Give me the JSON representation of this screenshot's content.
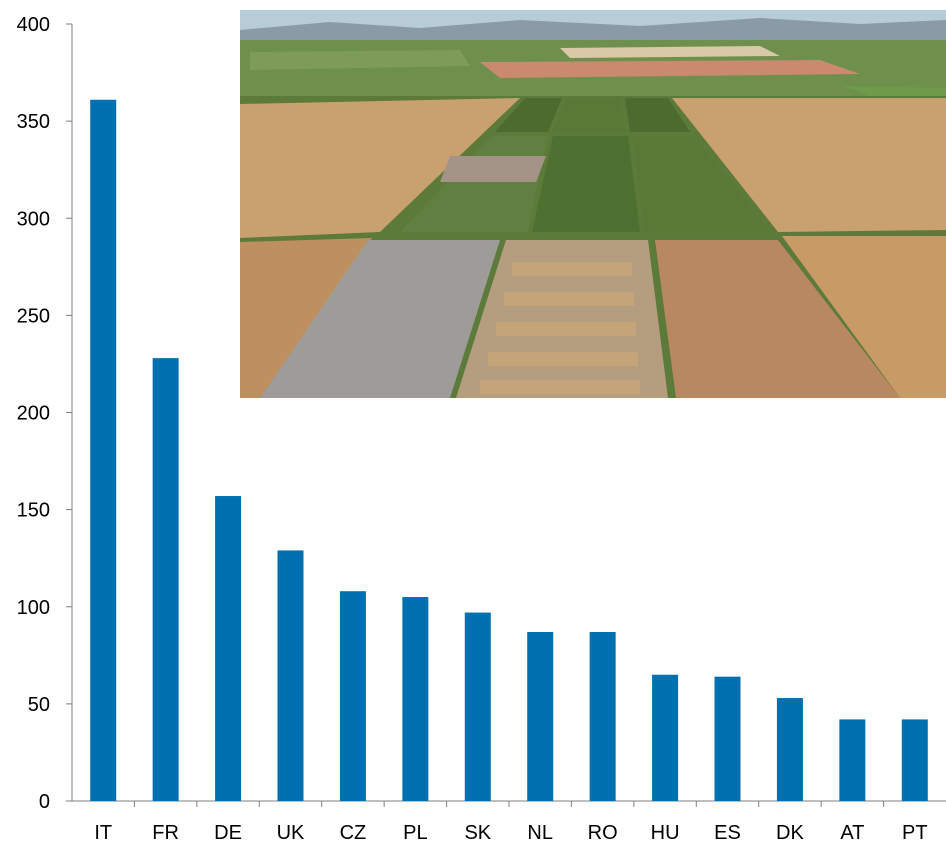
{
  "chart_data": {
    "type": "bar",
    "title": "",
    "xlabel": "",
    "ylabel": "",
    "categories": [
      "IT",
      "FR",
      "DE",
      "UK",
      "CZ",
      "PL",
      "SK",
      "NL",
      "RO",
      "HU",
      "ES",
      "DK",
      "AT",
      "PT"
    ],
    "values": [
      361,
      228,
      157,
      129,
      108,
      105,
      97,
      87,
      87,
      65,
      64,
      53,
      42,
      42
    ],
    "ylim": [
      0,
      400
    ],
    "yticks": [
      0,
      50,
      100,
      150,
      200,
      250,
      300,
      350,
      400
    ],
    "grid": false,
    "legend": "none",
    "bar_color": "#0070B0",
    "axis_color": "#7F7F7F"
  },
  "inset_photo": {
    "icon": "aerial-farmland-photo",
    "colors": {
      "sky": "#B8CCD8",
      "hills": "#8A9AA6",
      "far_fields": "#6F8F4C",
      "dry_plot": "#C9A16F",
      "green_plot": "#4D6B2E",
      "grey_plot": "#9E9C98",
      "paths": "#5C7A3A"
    }
  }
}
